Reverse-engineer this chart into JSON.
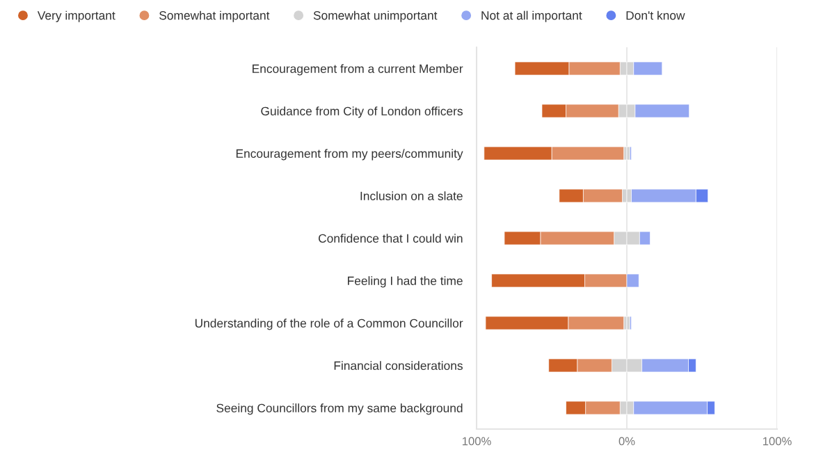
{
  "chart_data": {
    "type": "bar",
    "orientation": "horizontal",
    "stacked": true,
    "categories": [
      "Encouragement from a current Member",
      "Guidance from City of London officers",
      "Encouragement from my peers/community",
      "Inclusion on a slate",
      "Confidence that I could win",
      "Feeling I had the time",
      "Understanding of the role of a Common Councillor",
      "Financial considerations",
      "Seeing Councillors from my same background"
    ],
    "series": [
      {
        "name": "Somewhat unimportant",
        "color": "#d3d3d3",
        "values": [
          -4.5,
          -5.5,
          -2,
          -3,
          -8.5,
          null,
          -2,
          -10,
          -4.5
        ]
      },
      {
        "name": "Somewhat important",
        "color": "#e08e64",
        "values": [
          -34,
          -35,
          -48,
          -26,
          -49,
          -28,
          -37,
          -23,
          -23
        ]
      },
      {
        "name": "Very important",
        "color": "#d06228",
        "values": [
          -36,
          -16,
          -45,
          -16,
          -24,
          -62,
          -55,
          -19,
          -13
        ]
      },
      {
        "color": "#d3d3d3",
        "values": [
          4.5,
          5.5,
          2,
          3,
          8.5,
          null,
          2,
          10,
          4.5
        ]
      },
      {
        "name": "Not at all important",
        "color": "#94a7f2",
        "values": [
          19,
          36,
          1,
          43,
          7,
          8,
          1,
          31,
          49
        ]
      },
      {
        "name": "Don't know",
        "color": "#6380ef",
        "values": [
          null,
          null,
          null,
          8,
          null,
          null,
          null,
          5,
          5
        ]
      }
    ],
    "xlim": [
      -100,
      100
    ],
    "xticks": [
      {
        "value": -100,
        "label": "100%"
      },
      {
        "value": 0,
        "label": "0%"
      },
      {
        "value": 100,
        "label": "100%"
      }
    ],
    "grid": "x",
    "legend": "top left",
    "marker": "circle"
  }
}
